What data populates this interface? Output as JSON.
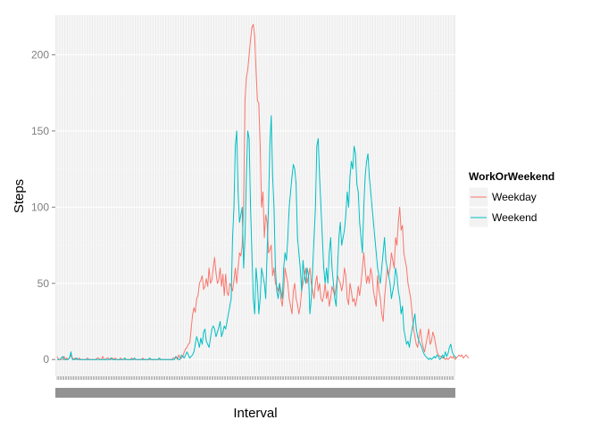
{
  "chart_data": {
    "type": "line",
    "xlabel": "Interval",
    "ylabel": "Steps",
    "ylim": [
      -11,
      226
    ],
    "yticks": [
      0,
      50,
      100,
      150,
      200
    ],
    "x_count": 288,
    "grid": true,
    "legend": {
      "title": "WorkOrWeekend",
      "position": "right"
    },
    "series": [
      {
        "name": "Weekday",
        "color": "#F8766D",
        "values": [
          2,
          0,
          0,
          0,
          0,
          2,
          0,
          1,
          0,
          1,
          3,
          1,
          0,
          1,
          0,
          0,
          1,
          0,
          0,
          0,
          0,
          0,
          1,
          0,
          0,
          0,
          0,
          0,
          0,
          1,
          1,
          0,
          0,
          2,
          0,
          0,
          1,
          1,
          0,
          0,
          1,
          0,
          1,
          0,
          0,
          0,
          1,
          0,
          0,
          0,
          0,
          0,
          0,
          0,
          1,
          0,
          0,
          0,
          0,
          0,
          0,
          0,
          1,
          0,
          0,
          0,
          0,
          0,
          0,
          0,
          0,
          0,
          0,
          0,
          0,
          0,
          0,
          0,
          0,
          0,
          0,
          0,
          0,
          0,
          1,
          1,
          2,
          0,
          3,
          1,
          1,
          2,
          5,
          7,
          8,
          10,
          11,
          20,
          29,
          34,
          31,
          40,
          42,
          50,
          52,
          55,
          46,
          48,
          53,
          48,
          60,
          50,
          52,
          60,
          67,
          57,
          50,
          52,
          60,
          48,
          56,
          42,
          56,
          44,
          42,
          50,
          48,
          45,
          52,
          60,
          50,
          60,
          70,
          68,
          75,
          100,
          170,
          185,
          190,
          200,
          210,
          218,
          220,
          212,
          190,
          170,
          168,
          140,
          100,
          110,
          80,
          95,
          90,
          70,
          72,
          75,
          55,
          60,
          50,
          48,
          45,
          50,
          40,
          35,
          45,
          60,
          55,
          50,
          40,
          35,
          30,
          45,
          50,
          40,
          36,
          30,
          35,
          45,
          50,
          55,
          60,
          50,
          55,
          60,
          50,
          45,
          40,
          50,
          55,
          45,
          50,
          40,
          38,
          42,
          50,
          40,
          45,
          35,
          40,
          48,
          45,
          42,
          48,
          55,
          52,
          50,
          45,
          50,
          60,
          55,
          40,
          36,
          50,
          45,
          38,
          40,
          35,
          40,
          48,
          42,
          50,
          60,
          70,
          60,
          50,
          55,
          50,
          60,
          55,
          45,
          40,
          35,
          55,
          45,
          40,
          30,
          25,
          40,
          50,
          60,
          55,
          60,
          70,
          65,
          60,
          80,
          75,
          90,
          100,
          85,
          88,
          70,
          65,
          60,
          50,
          45,
          40,
          30,
          20,
          15,
          10,
          8,
          15,
          20,
          12,
          8,
          5,
          10,
          15,
          20,
          10,
          12,
          18,
          15,
          10,
          5,
          3,
          2,
          2,
          1,
          1,
          0,
          1,
          0,
          1,
          2,
          1,
          2,
          0,
          1,
          2,
          3,
          2,
          3,
          1,
          2,
          3,
          2,
          1
        ],
        "_note": "Read approximately off the axes"
      },
      {
        "name": "Weekend",
        "color": "#00BFC4",
        "values": [
          0,
          0,
          0,
          1,
          2,
          0,
          0,
          0,
          0,
          1,
          5,
          0,
          0,
          0,
          1,
          0,
          0,
          0,
          0,
          0,
          0,
          0,
          0,
          0,
          0,
          0,
          0,
          0,
          0,
          0,
          0,
          0,
          0,
          0,
          0,
          0,
          0,
          0,
          0,
          1,
          0,
          0,
          0,
          0,
          0,
          0,
          0,
          0,
          0,
          1,
          0,
          0,
          0,
          0,
          0,
          0,
          1,
          0,
          0,
          0,
          0,
          0,
          0,
          0,
          0,
          0,
          0,
          1,
          0,
          0,
          0,
          0,
          0,
          0,
          1,
          0,
          0,
          0,
          0,
          0,
          0,
          0,
          0,
          0,
          0,
          0,
          2,
          1,
          0,
          0,
          3,
          2,
          1,
          3,
          5,
          3,
          1,
          2,
          3,
          5,
          10,
          15,
          12,
          8,
          14,
          10,
          18,
          20,
          12,
          10,
          8,
          14,
          20,
          22,
          20,
          15,
          18,
          21,
          25,
          15,
          18,
          22,
          20,
          25,
          30,
          35,
          40,
          80,
          100,
          140,
          150,
          110,
          90,
          95,
          100,
          60,
          80,
          120,
          150,
          145,
          100,
          70,
          40,
          30,
          60,
          50,
          30,
          40,
          60,
          55,
          50,
          40,
          70,
          100,
          140,
          160,
          120,
          100,
          60,
          45,
          40,
          50,
          45,
          40,
          60,
          70,
          65,
          80,
          100,
          110,
          120,
          128,
          125,
          115,
          80,
          70,
          60,
          45,
          65,
          55,
          50,
          60,
          55,
          30,
          40,
          60,
          80,
          100,
          140,
          145,
          120,
          100,
          80,
          60,
          50,
          60,
          50,
          70,
          80,
          60,
          50,
          40,
          35,
          60,
          80,
          90,
          75,
          80,
          85,
          95,
          110,
          100,
          120,
          130,
          125,
          140,
          135,
          115,
          110,
          90,
          80,
          70,
          100,
          120,
          130,
          135,
          120,
          110,
          100,
          90,
          80,
          70,
          60,
          55,
          50,
          60,
          70,
          80,
          65,
          60,
          55,
          50,
          40,
          45,
          50,
          60,
          55,
          45,
          40,
          30,
          35,
          20,
          15,
          10,
          12,
          8,
          15,
          20,
          25,
          30,
          20,
          15,
          12,
          10,
          8,
          5,
          3,
          2,
          1,
          0,
          1,
          0,
          1,
          2,
          1,
          3,
          2,
          0,
          1,
          3,
          1,
          5,
          2,
          4,
          8,
          10,
          5,
          3,
          2,
          1
        ]
      }
    ]
  }
}
